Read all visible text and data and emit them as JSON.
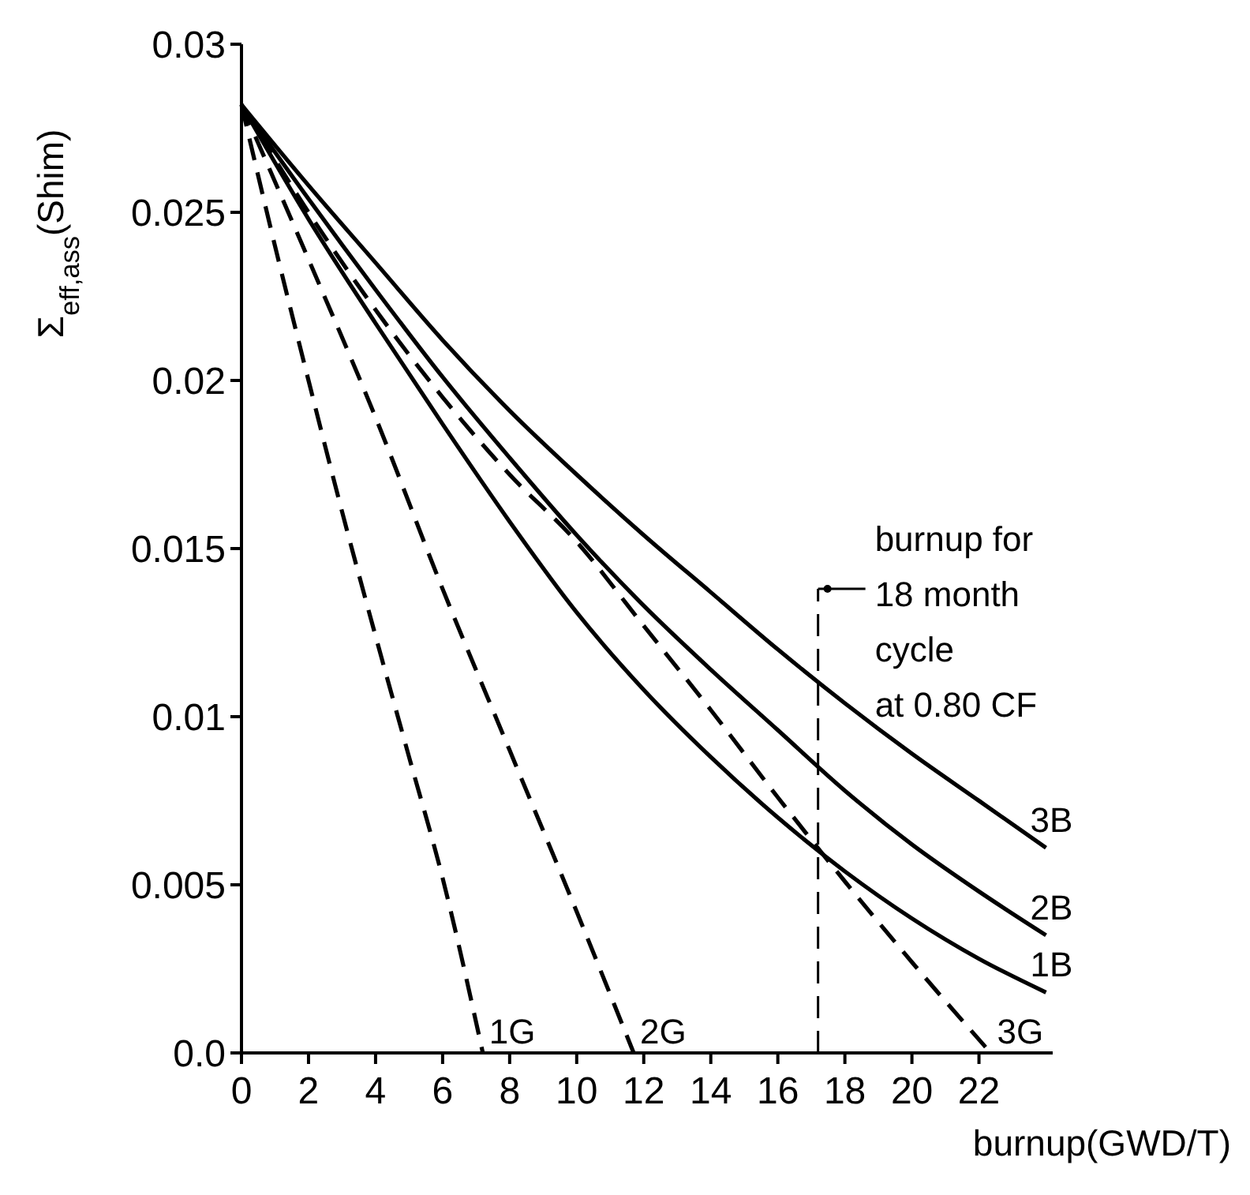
{
  "chart_data": {
    "type": "line",
    "xlabel": "burnup(GWD/T)",
    "ylabel": "Σ$_{eff,ass}$(Shim)",
    "xlim": [
      0,
      24.2
    ],
    "ylim": [
      0,
      0.03
    ],
    "xticks": [
      0,
      2,
      4,
      6,
      8,
      10,
      12,
      14,
      16,
      18,
      20,
      22
    ],
    "yticks": [
      {
        "value": 0,
        "label": "0.0"
      },
      0.005,
      0.01,
      0.015,
      0.02,
      0.025,
      0.03
    ],
    "grid": false,
    "marker": "none",
    "series": [
      {
        "name": "1G",
        "color": "#000000",
        "line_style": "dashed",
        "x": [
          0,
          1,
          2,
          3,
          4,
          5,
          6,
          7.2
        ],
        "values": [
          0.0282,
          0.024,
          0.02,
          0.0161,
          0.0124,
          0.0088,
          0.0052,
          0
        ]
      },
      {
        "name": "2G",
        "color": "#000000",
        "line_style": "dashed",
        "x": [
          0,
          2,
          4,
          6,
          8,
          10,
          11.7
        ],
        "values": [
          0.0282,
          0.0236,
          0.0189,
          0.0138,
          0.009,
          0.0042,
          0
        ]
      },
      {
        "name": "3G",
        "color": "#000000",
        "line_style": "dashed",
        "x": [
          0,
          2,
          4,
          6,
          8,
          10,
          12,
          14,
          16,
          18,
          20,
          22.35
        ],
        "values": [
          0.0282,
          0.025,
          0.0221,
          0.0195,
          0.0172,
          0.0152,
          0.0127,
          0.0102,
          0.0076,
          0.0051,
          0.0027,
          0
        ]
      },
      {
        "name": "1B",
        "color": "#000000",
        "line_style": "solid",
        "x": [
          0,
          2,
          4,
          6,
          8,
          10,
          12,
          14,
          16,
          18,
          20,
          22,
          24
        ],
        "values": [
          0.0282,
          0.0248,
          0.0217,
          0.0187,
          0.0158,
          0.0131,
          0.0108,
          0.0088,
          0.007,
          0.0054,
          0.004,
          0.0028,
          0.0018
        ]
      },
      {
        "name": "2B",
        "color": "#000000",
        "line_style": "solid",
        "x": [
          0,
          2,
          4,
          6,
          8,
          10,
          12,
          14,
          16,
          18,
          20,
          22,
          24
        ],
        "values": [
          0.0282,
          0.0254,
          0.0227,
          0.0201,
          0.0177,
          0.0154,
          0.0133,
          0.0114,
          0.0096,
          0.0078,
          0.0062,
          0.0048,
          0.0035
        ]
      },
      {
        "name": "3B",
        "color": "#000000",
        "line_style": "solid",
        "x": [
          0,
          2,
          4,
          6,
          8,
          10,
          12,
          14,
          16,
          18,
          20,
          22,
          24
        ],
        "values": [
          0.0282,
          0.0258,
          0.0235,
          0.0212,
          0.0191,
          0.0172,
          0.0154,
          0.0137,
          0.012,
          0.0104,
          0.0089,
          0.0075,
          0.0061
        ]
      }
    ],
    "ref_lines": [
      {
        "axis": "x",
        "value": 17.2,
        "label": "burnup for\n18 month\ncycle\nat 0.80 CF",
        "color": "#000000",
        "line_style": "dashed"
      }
    ]
  }
}
